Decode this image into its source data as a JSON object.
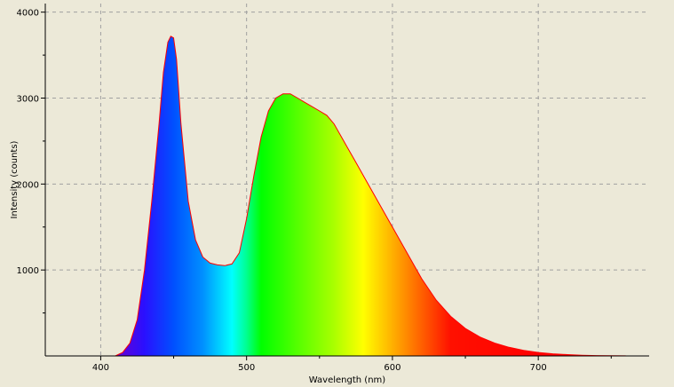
{
  "chart_data": {
    "type": "area",
    "title": "",
    "xlabel": "Wavelength (nm)",
    "ylabel": "Intensity (counts)",
    "xlim": [
      362,
      776
    ],
    "ylim": [
      0,
      4100
    ],
    "x_ticks": [
      400,
      500,
      600,
      700
    ],
    "x_tick_labels": [
      "400",
      "500",
      "600",
      "700"
    ],
    "y_ticks": [
      1000,
      2000,
      3000,
      4000
    ],
    "y_tick_labels": [
      "1000",
      "2000",
      "3000",
      "4000"
    ],
    "grid": true,
    "legend": "none",
    "series": [
      {
        "x": [
          410,
          415,
          420,
          425,
          430,
          435,
          440,
          443,
          446,
          448,
          450,
          452,
          455,
          460,
          465,
          470,
          475,
          480,
          485,
          490,
          495,
          500,
          505,
          510,
          515,
          520,
          525,
          530,
          535,
          540,
          545,
          550,
          555,
          560,
          565,
          570,
          575,
          580,
          585,
          590,
          595,
          600,
          610,
          620,
          630,
          640,
          650,
          660,
          670,
          680,
          690,
          700,
          710,
          720,
          730,
          740,
          750,
          760
        ],
        "y": [
          0,
          40,
          150,
          420,
          1000,
          1800,
          2700,
          3300,
          3650,
          3720,
          3700,
          3450,
          2700,
          1800,
          1350,
          1150,
          1080,
          1060,
          1050,
          1070,
          1200,
          1600,
          2100,
          2550,
          2850,
          3000,
          3050,
          3050,
          3000,
          2950,
          2900,
          2850,
          2800,
          2700,
          2550,
          2400,
          2250,
          2100,
          1950,
          1800,
          1650,
          1500,
          1200,
          900,
          650,
          460,
          320,
          220,
          150,
          100,
          65,
          40,
          25,
          15,
          8,
          4,
          2,
          1
        ]
      }
    ],
    "colors": {
      "background": "#ece9d8",
      "plot_background": "#ece9d8",
      "outline": "#ff0000",
      "grid": "#a0a0a0"
    }
  }
}
